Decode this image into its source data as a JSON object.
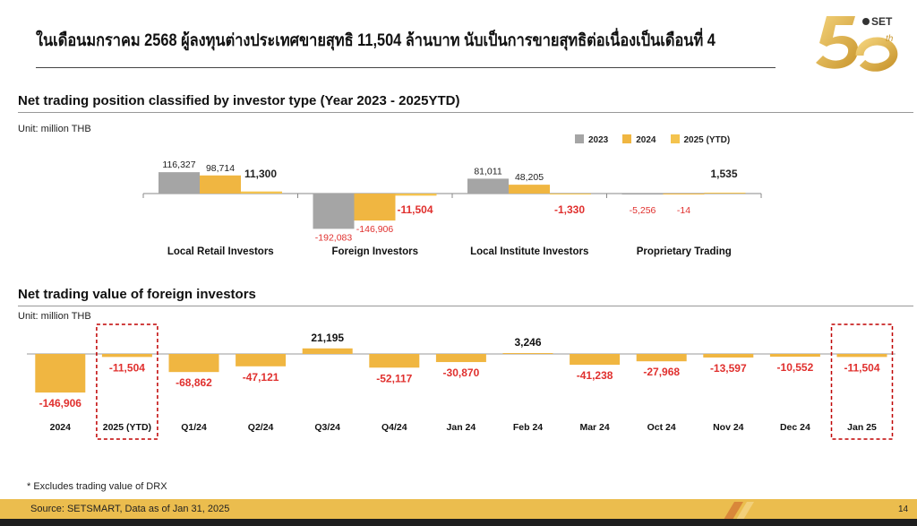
{
  "headline": "ในเดือนมกราคม 2568 ผู้ลงทุนต่างประเทศขายสุทธิ 11,504 ล้านบาท นับเป็นการขายสุทธิต่อเนื่องเป็นเดือนที่ 4",
  "logo": {
    "text": "50",
    "brand": "SET",
    "suffix": "th"
  },
  "colors": {
    "gray": "#a5a5a5",
    "gold": "#f0b641",
    "gold_light": "#f4c34e",
    "red": "#e0302e",
    "highlight": "#c00000"
  },
  "chart_data": [
    {
      "type": "bar",
      "title": "Net trading position classified by investor type (Year 2023 - 2025YTD)",
      "unit": "Unit: million THB",
      "categories": [
        "Local Retail Investors",
        "Foreign Investors",
        "Local Institute Investors",
        "Proprietary Trading"
      ],
      "series": [
        {
          "name": "2023",
          "values": [
            116327,
            -192083,
            81011,
            -5256
          ]
        },
        {
          "name": "2024",
          "values": [
            98714,
            -146906,
            48205,
            -14
          ]
        },
        {
          "name": "2025 (YTD)",
          "values": [
            11300,
            -11504,
            -1330,
            1535
          ]
        }
      ],
      "labels": [
        [
          "116,327",
          "-192,083",
          "81,011",
          "-5,256"
        ],
        [
          "98,714",
          "-146,906",
          "48,205",
          "-14"
        ],
        [
          "11,300",
          "-11,504",
          "-1,330",
          "1,535"
        ]
      ],
      "legend": "top-right",
      "grid": false
    },
    {
      "type": "bar",
      "title": "Net trading value of foreign investors",
      "unit": "Unit: million THB",
      "categories": [
        "2024",
        "2025 (YTD)",
        "Q1/24",
        "Q2/24",
        "Q3/24",
        "Q4/24",
        "Jan 24",
        "Feb 24",
        "Mar 24",
        "Oct 24",
        "Nov 24",
        "Dec 24",
        "Jan 25"
      ],
      "values": [
        -146906,
        -11504,
        -68862,
        -47121,
        21195,
        -52117,
        -30870,
        3246,
        -41238,
        -27968,
        -13597,
        -10552,
        -11504
      ],
      "labels": [
        "-146,906",
        "-11,504",
        "-68,862",
        "-47,121",
        "21,195",
        "-52,117",
        "-30,870",
        "3,246",
        "-41,238",
        "-27,968",
        "-13,597",
        "-10,552",
        "-11,504"
      ],
      "highlighted": [
        "2025 (YTD)",
        "Jan 25"
      ],
      "grid": false
    }
  ],
  "footnote": "* Excludes trading value of DRX",
  "source": "Source: SETSMART, Data as of Jan 31, 2025",
  "page_number": "14"
}
